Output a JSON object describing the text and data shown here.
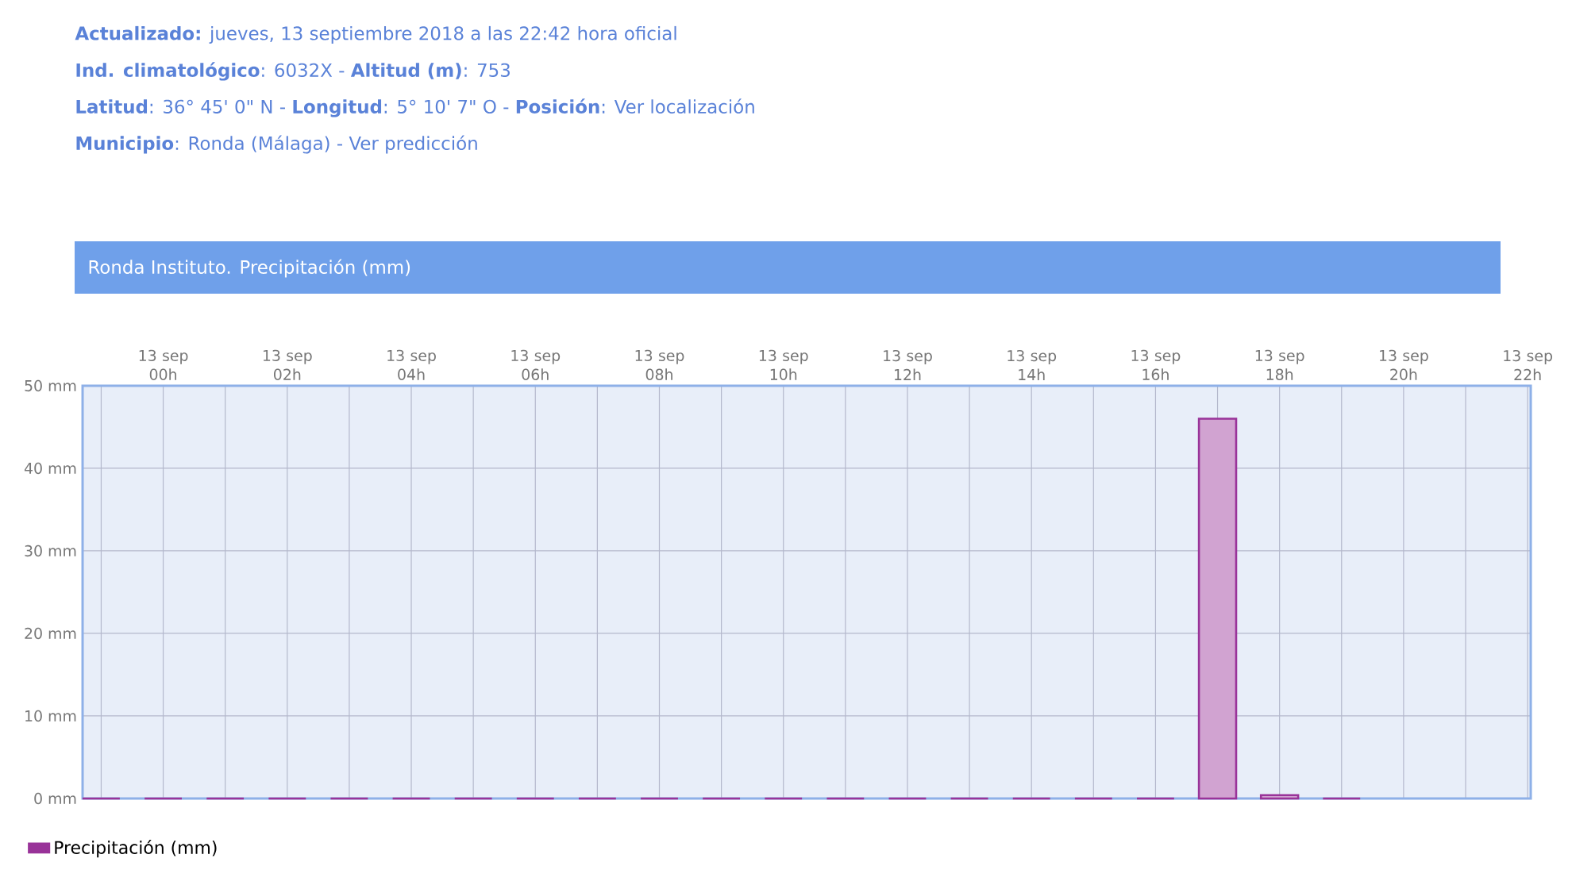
{
  "chart_data": {
    "type": "bar",
    "title": "Ronda Instituto. Precipitación (mm)",
    "annotations": [
      "**Actualizado:** jueves, 13 septiembre 2018 a las 22:42 hora oficial",
      "**Ind. climatológico**: 6032X -  **Altitud (m)**: 753",
      "**Latitud**: 36° 45' 0\" N - **Longitud**: 5° 10' 7\" O -  **Posición**:   Ver localización",
      "**Municipio**:   Ronda (Málaga) - Ver predicción"
    ],
    "categories": [
      null,
      "13 sep 00h",
      null,
      "13 sep 02h",
      null,
      "13 sep 04h",
      null,
      "13 sep 06h",
      null,
      "13 sep 08h",
      null,
      "13 sep 10h",
      null,
      "13 sep 12h",
      null,
      "13 sep 14h",
      null,
      "13 sep 16h",
      null,
      "13 sep 18h",
      null,
      "13 sep 20h",
      null,
      "13 sep 22h"
    ],
    "series": [
      {
        "name": "Precipitación (mm)",
        "color": "#993399",
        "values": [
          0,
          0,
          0,
          0,
          0,
          0,
          0,
          0,
          0,
          0,
          0,
          0,
          0,
          0,
          0,
          0,
          0,
          0,
          46,
          0.4,
          0,
          null,
          null,
          null
        ]
      }
    ],
    "ylim": [
      0,
      50
    ],
    "yticks": [
      {
        "value": 0,
        "label": "0 mm"
      },
      {
        "value": 10,
        "label": "10 mm"
      },
      {
        "value": 20,
        "label": "20 mm"
      },
      {
        "value": 30,
        "label": "30 mm"
      },
      {
        "value": 40,
        "label": "40 mm"
      },
      {
        "value": 50,
        "label": "50 mm"
      }
    ],
    "grid": true,
    "legend": "bottom left"
  }
}
